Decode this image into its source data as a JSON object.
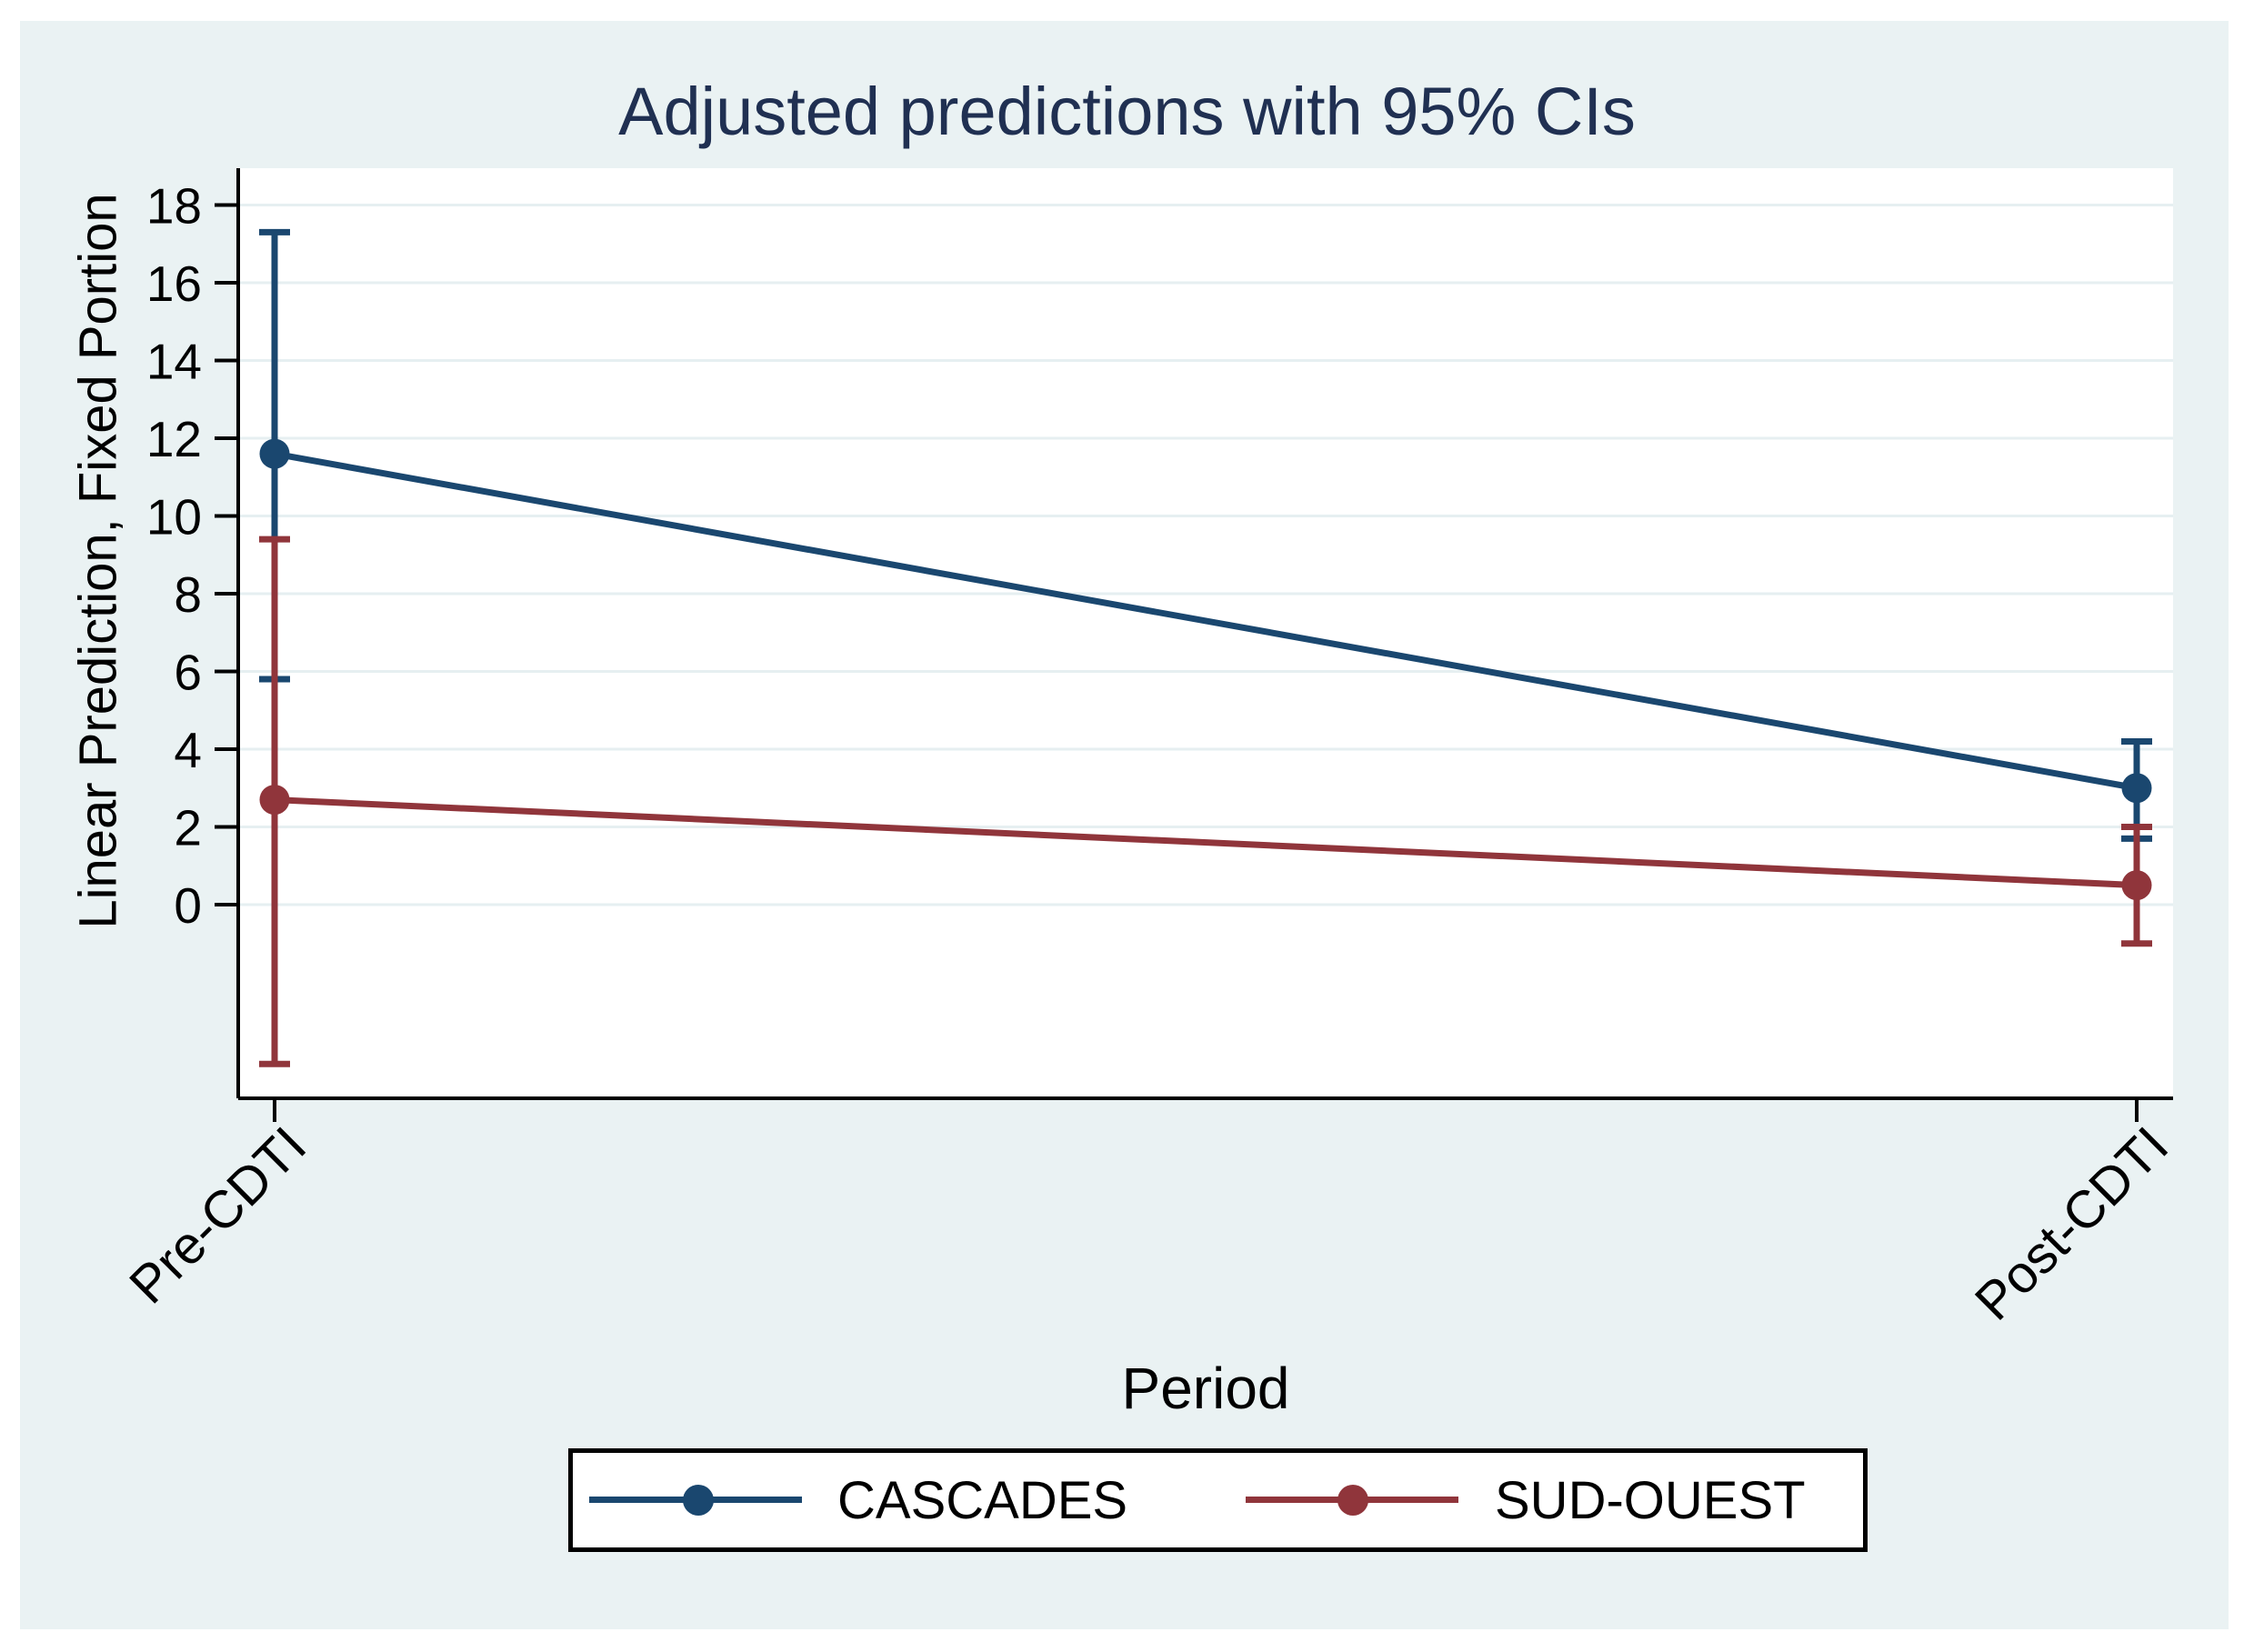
{
  "figure": {
    "title": "Adjusted predictions with 95% CIs"
  },
  "colors": {
    "background": "#eaf2f3",
    "plot_background": "#ffffff",
    "gridline": "#e6eff1",
    "axis": "#000000",
    "title_text": "#203052",
    "navy": "#1a476f",
    "maroon": "#90353b"
  },
  "chart_data": {
    "type": "line",
    "title": "Adjusted predictions with 95% CIs",
    "xlabel": "Period",
    "ylabel": "Linear Prediction, Fixed Portion",
    "categories": [
      "Pre-CDTI",
      "Post-CDTI"
    ],
    "y_ticks": [
      0,
      2,
      4,
      6,
      8,
      10,
      12,
      14,
      16,
      18
    ],
    "ylim": [
      -5,
      19
    ],
    "grid": true,
    "legend_position": "bottom",
    "error_bars": "95% CI",
    "series": [
      {
        "name": "CASCADES",
        "color": "#1a476f",
        "values": [
          11.6,
          3.0
        ],
        "ci_low": [
          5.8,
          1.7
        ],
        "ci_high": [
          17.3,
          4.2
        ]
      },
      {
        "name": "SUD-OUEST",
        "color": "#90353b",
        "values": [
          2.7,
          0.5
        ],
        "ci_low": [
          -4.1,
          -1.0
        ],
        "ci_high": [
          9.4,
          2.0
        ]
      }
    ]
  }
}
